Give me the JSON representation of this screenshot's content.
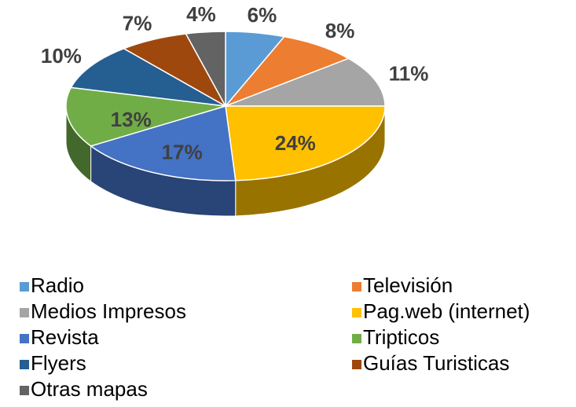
{
  "chart_data": {
    "type": "pie",
    "three_d": true,
    "categories": [
      "Radio",
      "Televisión",
      "Medios Impresos",
      "Pag.web (internet)",
      "Revista",
      "Tripticos",
      "Flyers",
      "Guías Turisticas",
      "Otras mapas"
    ],
    "values": [
      6,
      8,
      11,
      24,
      17,
      13,
      10,
      7,
      4
    ],
    "value_labels": [
      "6%",
      "8%",
      "11%",
      "24%",
      "17%",
      "13%",
      "10%",
      "7%",
      "4%"
    ],
    "colors": [
      "#5b9bd5",
      "#ed7d31",
      "#a5a5a5",
      "#ffc000",
      "#4472c4",
      "#70ad47",
      "#255e91",
      "#9e480e",
      "#636363"
    ]
  }
}
